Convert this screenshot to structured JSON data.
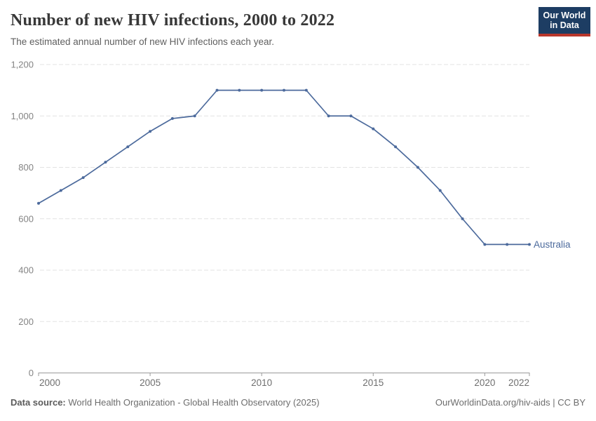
{
  "header": {
    "title": "Number of new HIV infections, 2000 to 2022",
    "subtitle": "The estimated annual number of new HIV infections each year.",
    "logo": {
      "line1": "Our World",
      "line2": "in Data",
      "bg_color": "#1d3d63",
      "stripe_color": "#b9362c"
    }
  },
  "chart_data": {
    "type": "line",
    "title": "Number of new HIV infections, 2000 to 2022",
    "x": [
      2000,
      2001,
      2002,
      2003,
      2004,
      2005,
      2006,
      2007,
      2008,
      2009,
      2010,
      2011,
      2012,
      2013,
      2014,
      2015,
      2016,
      2017,
      2018,
      2019,
      2020,
      2021,
      2022
    ],
    "series": [
      {
        "name": "Australia",
        "color": "#4c6a9c",
        "values": [
          660,
          710,
          760,
          820,
          880,
          940,
          990,
          1000,
          1100,
          1100,
          1100,
          1100,
          1100,
          1000,
          1000,
          950,
          880,
          800,
          710,
          600,
          500,
          500,
          500
        ]
      }
    ],
    "xlim": [
      2000,
      2022
    ],
    "ylim": [
      0,
      1200
    ],
    "xticks": [
      2000,
      2005,
      2010,
      2015,
      2020,
      2022
    ],
    "xtick_labels": [
      "2000",
      "2005",
      "2010",
      "2015",
      "2020",
      "2022"
    ],
    "yticks": [
      0,
      200,
      400,
      600,
      800,
      1000,
      1200
    ],
    "ytick_labels": [
      "0",
      "200",
      "400",
      "600",
      "800",
      "1,000",
      "1,200"
    ],
    "grid": "horizontal dashed",
    "legend_position": "end-of-line label",
    "xlabel": "",
    "ylabel": ""
  },
  "footer": {
    "source_label": "Data source:",
    "source_text": "World Health Organization - Global Health Observatory (2025)",
    "credit": "OurWorldinData.org/hiv-aids | CC BY"
  }
}
